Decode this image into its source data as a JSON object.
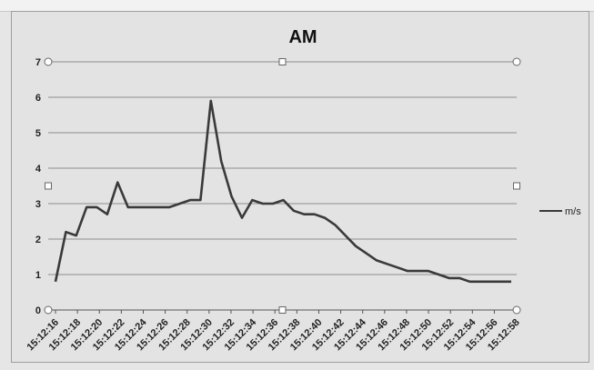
{
  "chart_data": {
    "type": "line",
    "title": "AM",
    "xlabel": "",
    "ylabel": "",
    "ylim": [
      0,
      7
    ],
    "yticks": [
      0,
      1,
      2,
      3,
      4,
      5,
      6,
      7
    ],
    "grid": true,
    "legend_position": "right",
    "x_tick_labels": [
      "15:12:16",
      "15:12:18",
      "15:12:20",
      "15:12:22",
      "15:12:24",
      "15:12:26",
      "15:12:28",
      "15:12:30",
      "15:12:32",
      "15:12:34",
      "15:12:36",
      "15:12:38",
      "15:12:40",
      "15:12:42",
      "15:12:44",
      "15:12:46",
      "15:12:48",
      "15:12:50",
      "15:12:52",
      "15:12:54",
      "15:12:56",
      "15:12:58"
    ],
    "series": [
      {
        "name": "m/s",
        "color": "#3a3a3a",
        "values": [
          0.8,
          2.2,
          2.1,
          2.9,
          2.9,
          2.7,
          3.6,
          2.9,
          2.9,
          2.9,
          2.9,
          2.9,
          3.0,
          3.1,
          3.1,
          5.9,
          4.2,
          3.2,
          2.6,
          3.1,
          3.0,
          3.0,
          3.1,
          2.8,
          2.7,
          2.7,
          2.6,
          2.4,
          2.1,
          1.8,
          1.6,
          1.4,
          1.3,
          1.2,
          1.1,
          1.1,
          1.1,
          1.0,
          0.9,
          0.9,
          0.8,
          0.8,
          0.8,
          0.8,
          0.8
        ]
      }
    ]
  }
}
